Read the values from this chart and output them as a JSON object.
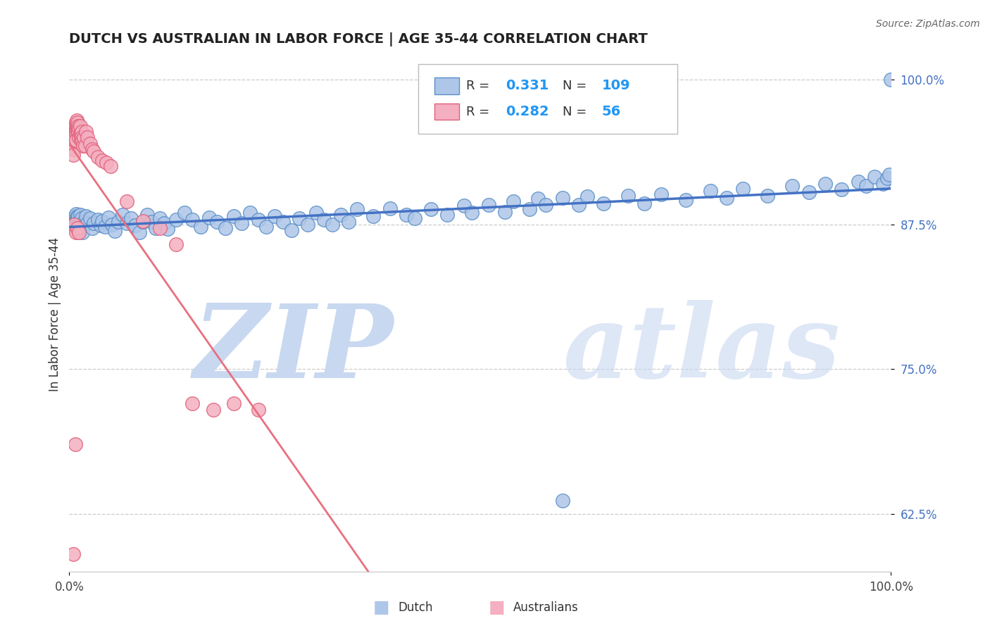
{
  "title": "DUTCH VS AUSTRALIAN IN LABOR FORCE | AGE 35-44 CORRELATION CHART",
  "source_text": "Source: ZipAtlas.com",
  "ylabel": "In Labor Force | Age 35-44",
  "xlim": [
    0.0,
    1.0
  ],
  "ylim": [
    0.575,
    1.02
  ],
  "yticks": [
    0.625,
    0.75,
    0.875,
    1.0
  ],
  "ytick_labels": [
    "62.5%",
    "75.0%",
    "87.5%",
    "100.0%"
  ],
  "xticks": [
    0.0,
    1.0
  ],
  "xtick_labels": [
    "0.0%",
    "100.0%"
  ],
  "dutch_R": 0.331,
  "dutch_N": 109,
  "australian_R": 0.282,
  "australian_N": 56,
  "dutch_color": "#aec6e8",
  "australian_color": "#f4afc0",
  "dutch_edge_color": "#5a8fc8",
  "australian_edge_color": "#e0607a",
  "dutch_line_color": "#4472c4",
  "australian_line_color": "#e87080",
  "legend_val_color": "#2196F3",
  "watermark_zip_color": "#c8d8f0",
  "watermark_atlas_color": "#c8d8f0",
  "background_color": "#ffffff",
  "tick_color": "#4472c4",
  "title_color": "#222222",
  "source_color": "#666666",
  "dutch_x": [
    0.005,
    0.005,
    0.007,
    0.007,
    0.008,
    0.008,
    0.008,
    0.009,
    0.009,
    0.01,
    0.01,
    0.01,
    0.011,
    0.011,
    0.012,
    0.012,
    0.013,
    0.013,
    0.014,
    0.015,
    0.016,
    0.016,
    0.018,
    0.02,
    0.022,
    0.025,
    0.028,
    0.03,
    0.035,
    0.038,
    0.04,
    0.043,
    0.048,
    0.052,
    0.055,
    0.06,
    0.065,
    0.07,
    0.075,
    0.08,
    0.085,
    0.09,
    0.095,
    0.1,
    0.105,
    0.11,
    0.115,
    0.12,
    0.13,
    0.14,
    0.15,
    0.16,
    0.17,
    0.18,
    0.19,
    0.2,
    0.21,
    0.22,
    0.23,
    0.24,
    0.25,
    0.26,
    0.27,
    0.28,
    0.29,
    0.3,
    0.31,
    0.32,
    0.33,
    0.34,
    0.35,
    0.37,
    0.39,
    0.41,
    0.42,
    0.44,
    0.46,
    0.48,
    0.49,
    0.51,
    0.53,
    0.54,
    0.56,
    0.57,
    0.58,
    0.6,
    0.62,
    0.63,
    0.65,
    0.68,
    0.6,
    0.7,
    0.72,
    0.75,
    0.78,
    0.8,
    0.82,
    0.85,
    0.88,
    0.9,
    0.92,
    0.94,
    0.96,
    0.97,
    0.98,
    0.99,
    0.995,
    0.998,
    1.0
  ],
  "dutch_y": [
    0.88,
    0.875,
    0.882,
    0.878,
    0.884,
    0.877,
    0.872,
    0.88,
    0.876,
    0.882,
    0.875,
    0.87,
    0.878,
    0.882,
    0.876,
    0.871,
    0.879,
    0.883,
    0.876,
    0.88,
    0.874,
    0.868,
    0.877,
    0.882,
    0.876,
    0.88,
    0.872,
    0.876,
    0.879,
    0.874,
    0.878,
    0.873,
    0.881,
    0.875,
    0.869,
    0.877,
    0.883,
    0.876,
    0.88,
    0.874,
    0.868,
    0.877,
    0.883,
    0.877,
    0.872,
    0.88,
    0.876,
    0.871,
    0.879,
    0.885,
    0.879,
    0.873,
    0.881,
    0.877,
    0.872,
    0.882,
    0.876,
    0.885,
    0.879,
    0.873,
    0.882,
    0.877,
    0.87,
    0.88,
    0.875,
    0.885,
    0.879,
    0.875,
    0.883,
    0.877,
    0.888,
    0.882,
    0.889,
    0.883,
    0.88,
    0.888,
    0.883,
    0.891,
    0.885,
    0.892,
    0.886,
    0.895,
    0.888,
    0.897,
    0.892,
    0.898,
    0.892,
    0.899,
    0.893,
    0.9,
    0.636,
    0.893,
    0.901,
    0.896,
    0.904,
    0.898,
    0.906,
    0.9,
    0.908,
    0.903,
    0.91,
    0.905,
    0.912,
    0.908,
    0.916,
    0.91,
    0.915,
    0.918,
    1.0
  ],
  "aus_x": [
    0.005,
    0.005,
    0.005,
    0.005,
    0.005,
    0.006,
    0.006,
    0.006,
    0.007,
    0.007,
    0.008,
    0.008,
    0.008,
    0.008,
    0.009,
    0.009,
    0.01,
    0.01,
    0.01,
    0.011,
    0.011,
    0.012,
    0.012,
    0.013,
    0.013,
    0.014,
    0.014,
    0.015,
    0.015,
    0.016,
    0.017,
    0.018,
    0.019,
    0.02,
    0.022,
    0.025,
    0.028,
    0.03,
    0.035,
    0.04,
    0.045,
    0.05,
    0.07,
    0.09,
    0.11,
    0.13,
    0.15,
    0.175,
    0.2,
    0.23,
    0.006,
    0.008,
    0.01,
    0.012,
    0.005,
    0.007
  ],
  "aus_y": [
    0.955,
    0.95,
    0.945,
    0.94,
    0.935,
    0.958,
    0.952,
    0.948,
    0.96,
    0.955,
    0.963,
    0.957,
    0.953,
    0.948,
    0.965,
    0.96,
    0.958,
    0.963,
    0.955,
    0.96,
    0.955,
    0.95,
    0.958,
    0.953,
    0.96,
    0.953,
    0.948,
    0.955,
    0.95,
    0.948,
    0.943,
    0.95,
    0.943,
    0.955,
    0.95,
    0.945,
    0.94,
    0.938,
    0.933,
    0.93,
    0.928,
    0.925,
    0.895,
    0.878,
    0.872,
    0.858,
    0.72,
    0.715,
    0.72,
    0.715,
    0.875,
    0.868,
    0.872,
    0.868,
    0.59,
    0.685
  ]
}
